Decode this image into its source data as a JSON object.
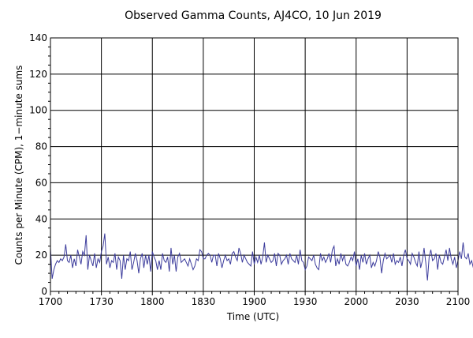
{
  "chart_data": {
    "type": "line",
    "title": "Observed Gamma Counts, AJ4CO, 10 Jun 2019",
    "xlabel": "Time (UTC)",
    "ylabel": "Counts per Minute (CPM), 1−minute sums",
    "x_ticks": [
      "1700",
      "1730",
      "1800",
      "1830",
      "1900",
      "1930",
      "2000",
      "2030",
      "2100"
    ],
    "y_ticks": [
      "0",
      "20",
      "40",
      "60",
      "80",
      "100",
      "120",
      "140"
    ],
    "xlim": [
      "17:00",
      "21:00"
    ],
    "ylim": [
      0,
      140
    ],
    "grid": true,
    "series_color": "#3c3c9c",
    "series": [
      {
        "x_start": "17:00",
        "x_step_minutes": 1,
        "values": [
          24,
          7,
          12,
          15,
          17,
          16,
          18,
          17,
          19,
          26,
          17,
          16,
          20,
          13,
          18,
          14,
          23,
          19,
          15,
          22,
          20,
          31,
          12,
          20,
          17,
          14,
          21,
          13,
          18,
          16,
          22,
          25,
          32,
          15,
          19,
          13,
          17,
          16,
          21,
          12,
          19,
          17,
          7,
          20,
          12,
          18,
          17,
          22,
          12,
          16,
          21,
          17,
          10,
          18,
          21,
          13,
          20,
          15,
          20,
          11,
          22,
          19,
          17,
          12,
          17,
          12,
          21,
          17,
          16,
          19,
          11,
          24,
          15,
          20,
          11,
          19,
          21,
          16,
          17,
          18,
          16,
          14,
          18,
          15,
          12,
          14,
          18,
          17,
          23,
          22,
          18,
          18,
          20,
          21,
          20,
          16,
          20,
          20,
          14,
          21,
          18,
          13,
          17,
          20,
          17,
          18,
          15,
          21,
          22,
          19,
          17,
          24,
          21,
          16,
          20,
          18,
          16,
          15,
          14,
          22,
          15,
          19,
          16,
          20,
          15,
          19,
          27,
          16,
          20,
          18,
          16,
          17,
          21,
          14,
          21,
          20,
          15,
          17,
          18,
          20,
          15,
          21,
          18,
          17,
          16,
          20,
          15,
          23,
          17,
          16,
          12,
          14,
          19,
          18,
          17,
          20,
          15,
          13,
          12,
          21,
          17,
          19,
          16,
          18,
          21,
          16,
          23,
          25,
          14,
          18,
          15,
          21,
          17,
          20,
          15,
          14,
          16,
          19,
          17,
          22,
          14,
          18,
          12,
          20,
          16,
          21,
          15,
          18,
          20,
          13,
          16,
          14,
          17,
          22,
          19,
          10,
          17,
          21,
          18,
          19,
          20,
          16,
          21,
          15,
          17,
          16,
          19,
          14,
          20,
          23,
          18,
          17,
          15,
          21,
          19,
          16,
          14,
          22,
          13,
          17,
          24,
          16,
          6,
          19,
          23,
          17,
          18,
          21,
          12,
          20,
          16,
          15,
          19,
          23,
          17,
          24,
          18,
          15,
          19,
          13,
          17,
          22,
          18,
          27,
          19,
          18,
          21,
          15,
          17,
          13,
          20,
          16,
          22,
          19,
          21,
          17,
          19,
          21,
          18,
          15
        ]
      }
    ]
  }
}
